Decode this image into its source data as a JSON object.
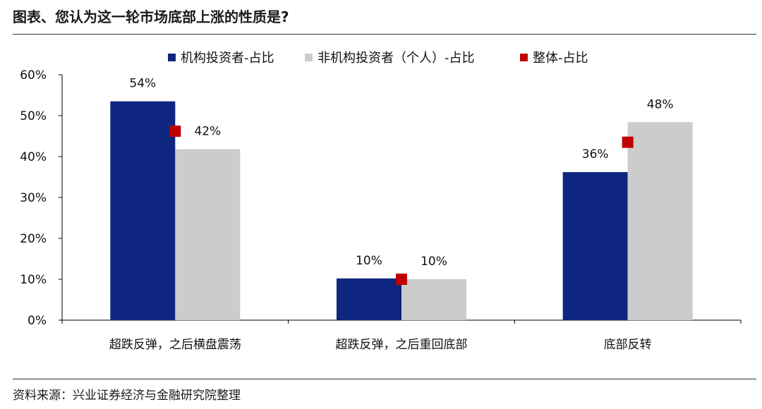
{
  "title": "图表、您认为这一轮市场底部上涨的性质是?",
  "source": "资料来源：兴业证券经济与金融研究院整理",
  "colors": {
    "institutional": "#0e2680",
    "individual": "#cccccc",
    "overall": "#c00000"
  },
  "chart_data": {
    "type": "bar",
    "categories": [
      "超跌反弹，之后横盘震荡",
      "超跌反弹，之后重回底部",
      "底部反转"
    ],
    "series": [
      {
        "name": "机构投资者-占比",
        "kind": "bar",
        "values": [
          0.535,
          0.102,
          0.362
        ],
        "labels": [
          "54%",
          "10%",
          "36%"
        ]
      },
      {
        "name": "非机构投资者（个人）-占比",
        "kind": "bar",
        "values": [
          0.418,
          0.1,
          0.484
        ],
        "labels": [
          "42%",
          "10%",
          "48%"
        ]
      },
      {
        "name": "整体-占比",
        "kind": "marker",
        "values": [
          0.462,
          0.1,
          0.435
        ]
      }
    ],
    "yticks": [
      "0%",
      "10%",
      "20%",
      "30%",
      "40%",
      "50%",
      "60%"
    ],
    "ylim": [
      0,
      0.6
    ],
    "legend_position": "top"
  }
}
